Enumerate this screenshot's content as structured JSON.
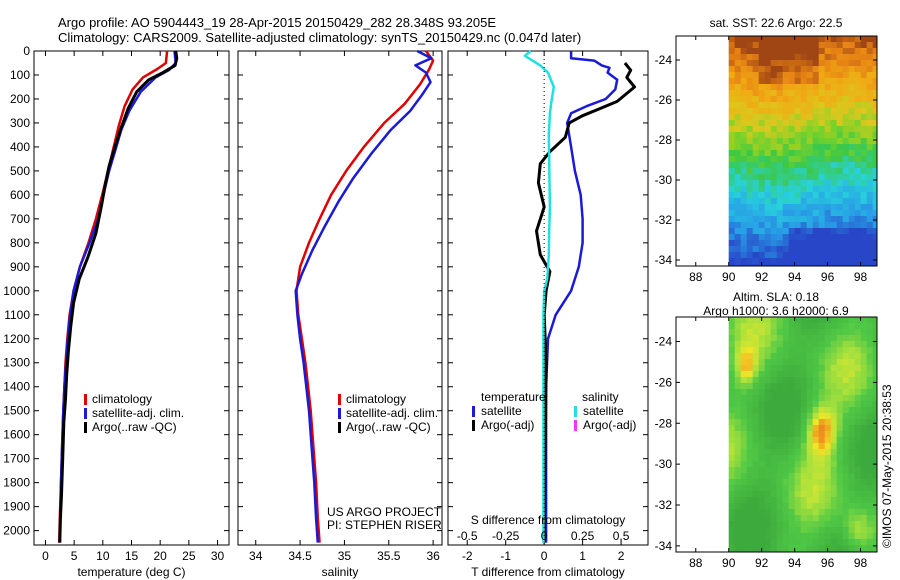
{
  "header": {
    "title_line1": "Argo profile: AO 5904443_19 28-Apr-2015 20150429_282 28.348S 93.205E",
    "title_line2": "Climatology: CARS2009. Satellite-adjusted climatology: synTS_20150429.nc (0.047d later)"
  },
  "colors": {
    "climatology": "#e00000",
    "satellite": "#1a1ad8",
    "argo": "#000000",
    "salinity_sat": "#22e0e0",
    "salinity_argo": "#ff33ff"
  },
  "chart_data": [
    {
      "type": "line",
      "name": "temperature-profile",
      "xlabel": "temperature (deg C)",
      "ylabel": "",
      "xlim": [
        -2,
        32
      ],
      "ylim": [
        2060,
        0
      ],
      "xticks": [
        0,
        5,
        10,
        15,
        20,
        25,
        30
      ],
      "yticks": [
        0,
        100,
        200,
        300,
        400,
        500,
        600,
        700,
        800,
        900,
        1000,
        1100,
        1200,
        1300,
        1400,
        1500,
        1600,
        1700,
        1800,
        1900,
        2000
      ],
      "legend": {
        "position": "lower-center",
        "entries": [
          "climatology",
          "satellite-adj. clim.",
          "Argo(..raw -QC)"
        ]
      },
      "series": [
        {
          "name": "climatology",
          "color": "#e00000",
          "points": [
            [
              21.2,
              0
            ],
            [
              21.0,
              50
            ],
            [
              19.5,
              75
            ],
            [
              17,
              110
            ],
            [
              15.2,
              160
            ],
            [
              13.8,
              230
            ],
            [
              12.8,
              310
            ],
            [
              11.9,
              400
            ],
            [
              10.9,
              500
            ],
            [
              10.0,
              590
            ],
            [
              8.8,
              700
            ],
            [
              7.5,
              800
            ],
            [
              6.0,
              900
            ],
            [
              4.9,
              1000
            ],
            [
              4.2,
              1100
            ],
            [
              3.8,
              1200
            ],
            [
              3.5,
              1300
            ],
            [
              3.3,
              1400
            ],
            [
              3.1,
              1500
            ],
            [
              2.9,
              1650
            ],
            [
              2.7,
              1800
            ],
            [
              2.5,
              1950
            ],
            [
              2.4,
              2050
            ]
          ]
        },
        {
          "name": "satellite-adj. clim.",
          "color": "#1a1ad8",
          "points": [
            [
              22.5,
              0
            ],
            [
              22.7,
              50
            ],
            [
              21.5,
              80
            ],
            [
              19.2,
              110
            ],
            [
              16.6,
              170
            ],
            [
              14.6,
              250
            ],
            [
              13.2,
              330
            ],
            [
              12.1,
              420
            ],
            [
              11.1,
              500
            ],
            [
              10.2,
              590
            ],
            [
              9.2,
              700
            ],
            [
              7.7,
              800
            ],
            [
              6.0,
              900
            ],
            [
              4.9,
              1000
            ],
            [
              4.3,
              1100
            ],
            [
              3.9,
              1200
            ],
            [
              3.6,
              1300
            ],
            [
              3.3,
              1400
            ],
            [
              3.1,
              1500
            ],
            [
              2.9,
              1650
            ],
            [
              2.7,
              1800
            ],
            [
              2.6,
              1950
            ],
            [
              2.5,
              2050
            ]
          ]
        },
        {
          "name": "Argo(..raw -QC)",
          "color": "#000000",
          "points": [
            [
              22.7,
              0
            ],
            [
              22.9,
              30
            ],
            [
              22.6,
              60
            ],
            [
              20.5,
              90
            ],
            [
              18.0,
              120
            ],
            [
              15.9,
              170
            ],
            [
              14.4,
              240
            ],
            [
              13.2,
              320
            ],
            [
              12.1,
              400
            ],
            [
              11.1,
              480
            ],
            [
              10.4,
              560
            ],
            [
              9.8,
              640
            ],
            [
              8.8,
              760
            ],
            [
              7.4,
              860
            ],
            [
              5.9,
              950
            ],
            [
              4.9,
              1050
            ],
            [
              4.4,
              1150
            ],
            [
              4.0,
              1250
            ],
            [
              3.7,
              1350
            ],
            [
              3.5,
              1450
            ],
            [
              3.2,
              1550
            ],
            [
              3.0,
              1700
            ],
            [
              2.8,
              1850
            ],
            [
              2.6,
              1950
            ],
            [
              2.5,
              2050
            ]
          ]
        }
      ]
    },
    {
      "type": "line",
      "name": "salinity-profile",
      "xlabel": "salinity",
      "ylabel": "",
      "xlim": [
        33.8,
        36.1
      ],
      "ylim": [
        2060,
        0
      ],
      "xticks": [
        34,
        34.5,
        35,
        35.5,
        36
      ],
      "legend": {
        "position": "lower-center",
        "entries": [
          "climatology",
          "satellite-adj. clim.",
          "Argo(..raw -QC)"
        ]
      },
      "annotations": [
        "US ARGO PROJECT",
        "PI: STEPHEN RISER"
      ],
      "series": [
        {
          "name": "climatology",
          "color": "#e00000",
          "points": [
            [
              35.92,
              0
            ],
            [
              36.0,
              40
            ],
            [
              35.95,
              80
            ],
            [
              35.85,
              140
            ],
            [
              35.68,
              220
            ],
            [
              35.45,
              300
            ],
            [
              35.22,
              400
            ],
            [
              35.02,
              500
            ],
            [
              34.85,
              600
            ],
            [
              34.72,
              700
            ],
            [
              34.6,
              800
            ],
            [
              34.5,
              900
            ],
            [
              34.46,
              1000
            ],
            [
              34.48,
              1100
            ],
            [
              34.52,
              1200
            ],
            [
              34.56,
              1300
            ],
            [
              34.59,
              1400
            ],
            [
              34.62,
              1500
            ],
            [
              34.65,
              1650
            ],
            [
              34.68,
              1800
            ],
            [
              34.7,
              1950
            ],
            [
              34.72,
              2050
            ]
          ]
        },
        {
          "name": "satellite-adj. clim.",
          "color": "#1a1ad8",
          "points": [
            [
              35.82,
              0
            ],
            [
              35.98,
              30
            ],
            [
              35.8,
              60
            ],
            [
              35.92,
              90
            ],
            [
              35.97,
              130
            ],
            [
              35.88,
              180
            ],
            [
              35.74,
              250
            ],
            [
              35.52,
              330
            ],
            [
              35.3,
              430
            ],
            [
              35.1,
              530
            ],
            [
              34.93,
              630
            ],
            [
              34.78,
              730
            ],
            [
              34.64,
              830
            ],
            [
              34.52,
              930
            ],
            [
              34.45,
              1000
            ],
            [
              34.47,
              1100
            ],
            [
              34.5,
              1200
            ],
            [
              34.54,
              1300
            ],
            [
              34.57,
              1400
            ],
            [
              34.6,
              1500
            ],
            [
              34.63,
              1650
            ],
            [
              34.66,
              1800
            ],
            [
              34.68,
              1950
            ],
            [
              34.7,
              2050
            ]
          ]
        }
      ]
    },
    {
      "type": "line",
      "name": "difference-profile",
      "xlabel": "T difference from climatology",
      "x2label": "S difference from climatology",
      "xlim": [
        -2.5,
        2.7
      ],
      "ylim": [
        2060,
        0
      ],
      "xticks": [
        -2,
        -1,
        0,
        1,
        2
      ],
      "x2ticks": [
        "-0.5",
        "-0.25",
        "0",
        "0.25",
        "0.5"
      ],
      "x2tick_values": [
        -0.5,
        -0.25,
        0,
        0.25,
        0.5
      ],
      "legend": {
        "position": "lower-center",
        "headers": [
          "temperature",
          "salinity"
        ],
        "entries": [
          "satellite",
          "Argo(-adj)",
          "satellite",
          "Argo(-adj)"
        ]
      },
      "series": [
        {
          "name": "temperature satellite",
          "color": "#1a1ad8",
          "points": [
            [
              0.7,
              0
            ],
            [
              0.7,
              30
            ],
            [
              1.3,
              40
            ],
            [
              1.5,
              60
            ],
            [
              1.7,
              70
            ],
            [
              1.65,
              90
            ],
            [
              1.9,
              120
            ],
            [
              1.85,
              160
            ],
            [
              1.6,
              200
            ],
            [
              1.1,
              230
            ],
            [
              0.7,
              260
            ],
            [
              0.6,
              300
            ],
            [
              0.7,
              400
            ],
            [
              0.8,
              500
            ],
            [
              0.95,
              600
            ],
            [
              1.0,
              700
            ],
            [
              1.0,
              800
            ],
            [
              0.9,
              900
            ],
            [
              0.7,
              1000
            ],
            [
              0.3,
              1100
            ],
            [
              0.1,
              1200
            ],
            [
              0.05,
              1400
            ],
            [
              0.05,
              2050
            ]
          ]
        },
        {
          "name": "temperature Argo(-adj)",
          "color": "#000000",
          "points": [
            [
              2.1,
              50
            ],
            [
              2.25,
              80
            ],
            [
              2.15,
              110
            ],
            [
              2.35,
              150
            ],
            [
              1.9,
              210
            ],
            [
              1.45,
              240
            ],
            [
              1.0,
              270
            ],
            [
              0.65,
              300
            ],
            [
              0.55,
              360
            ],
            [
              0.15,
              420
            ],
            [
              -0.1,
              470
            ],
            [
              -0.15,
              550
            ],
            [
              0.0,
              650
            ],
            [
              -0.2,
              750
            ],
            [
              -0.1,
              850
            ],
            [
              0.15,
              920
            ],
            [
              0.05,
              1000
            ],
            [
              0.0,
              1100
            ],
            [
              0.05,
              1300
            ],
            [
              0.0,
              2050
            ]
          ]
        },
        {
          "name": "salinity satellite",
          "color": "#22e0e0",
          "points": [
            [
              -0.35,
              0
            ],
            [
              -0.5,
              20
            ],
            [
              -0.1,
              60
            ],
            [
              0.1,
              90
            ],
            [
              0.25,
              150
            ],
            [
              0.2,
              200
            ],
            [
              0.15,
              260
            ],
            [
              0.12,
              350
            ],
            [
              0.13,
              450
            ],
            [
              0.14,
              550
            ],
            [
              0.15,
              650
            ],
            [
              0.13,
              750
            ],
            [
              0.12,
              850
            ],
            [
              0.08,
              950
            ],
            [
              0.0,
              1000
            ],
            [
              -0.02,
              1100
            ],
            [
              -0.02,
              1300
            ],
            [
              -0.02,
              2050
            ]
          ]
        }
      ]
    },
    {
      "type": "heatmap",
      "name": "sst-map",
      "title": "sat. SST: 22.6  Argo: 22.5",
      "xlim": [
        86.8,
        99
      ],
      "ylim": [
        -34.3,
        -22.8
      ],
      "xticks": [
        88,
        90,
        92,
        94,
        96,
        98
      ],
      "yticks": [
        -24,
        -26,
        -28,
        -30,
        -32,
        -34
      ]
    },
    {
      "type": "heatmap",
      "name": "sla-map",
      "title_line1": "Altim. SLA: 0.18",
      "title_line2": "Argo h1000: 3.6 h2000: 6.9",
      "xlim": [
        86.8,
        99
      ],
      "ylim": [
        -34.3,
        -22.8
      ],
      "xticks": [
        88,
        90,
        92,
        94,
        96,
        98
      ],
      "yticks": [
        -24,
        -26,
        -28,
        -30,
        -32,
        -34
      ]
    }
  ],
  "side_stamp": "©IMOS 07-May-2015 20:38:53"
}
